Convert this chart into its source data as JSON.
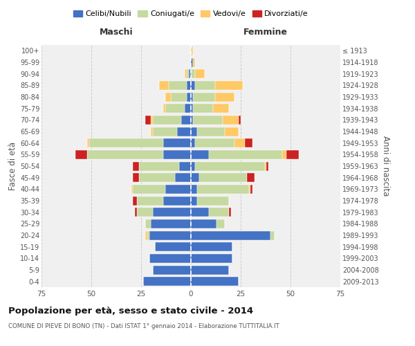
{
  "age_groups": [
    "0-4",
    "5-9",
    "10-14",
    "15-19",
    "20-24",
    "25-29",
    "30-34",
    "35-39",
    "40-44",
    "45-49",
    "50-54",
    "55-59",
    "60-64",
    "65-69",
    "70-74",
    "75-79",
    "80-84",
    "85-89",
    "90-94",
    "95-99",
    "100+"
  ],
  "birth_years": [
    "2009-2013",
    "2004-2008",
    "1999-2003",
    "1994-1998",
    "1989-1993",
    "1984-1988",
    "1979-1983",
    "1974-1978",
    "1969-1973",
    "1964-1968",
    "1959-1963",
    "1954-1958",
    "1949-1953",
    "1944-1948",
    "1939-1943",
    "1934-1938",
    "1929-1933",
    "1924-1928",
    "1919-1923",
    "1914-1918",
    "≤ 1913"
  ],
  "colors": {
    "celibe": "#4472c4",
    "coniugato": "#c5d9a0",
    "vedovo": "#ffc966",
    "divorziato": "#cc2222"
  },
  "maschi": {
    "celibe": [
      24,
      19,
      21,
      18,
      21,
      20,
      19,
      14,
      13,
      8,
      6,
      14,
      14,
      7,
      5,
      3,
      2,
      2,
      1,
      0,
      0
    ],
    "coniugato": [
      0,
      0,
      0,
      0,
      1,
      3,
      8,
      13,
      16,
      18,
      20,
      38,
      37,
      12,
      14,
      10,
      8,
      9,
      1,
      0,
      0
    ],
    "vedovo": [
      0,
      0,
      0,
      0,
      1,
      0,
      0,
      0,
      1,
      0,
      0,
      0,
      1,
      1,
      1,
      1,
      3,
      5,
      1,
      0,
      0
    ],
    "divorziato": [
      0,
      0,
      0,
      0,
      0,
      0,
      1,
      2,
      0,
      3,
      3,
      6,
      0,
      0,
      3,
      0,
      0,
      0,
      0,
      0,
      0
    ]
  },
  "femmine": {
    "nubile": [
      24,
      19,
      21,
      21,
      40,
      13,
      9,
      3,
      3,
      4,
      2,
      9,
      2,
      3,
      1,
      1,
      1,
      2,
      0,
      1,
      0
    ],
    "coniugata": [
      0,
      0,
      0,
      0,
      2,
      4,
      10,
      16,
      26,
      24,
      35,
      37,
      20,
      14,
      15,
      10,
      11,
      10,
      2,
      0,
      0
    ],
    "vedova": [
      0,
      0,
      0,
      0,
      0,
      0,
      0,
      0,
      1,
      0,
      1,
      2,
      5,
      7,
      8,
      8,
      10,
      14,
      5,
      1,
      1
    ],
    "divorziata": [
      0,
      0,
      0,
      0,
      0,
      0,
      1,
      0,
      1,
      4,
      1,
      6,
      4,
      0,
      1,
      0,
      0,
      0,
      0,
      0,
      0
    ]
  },
  "xlim": 75,
  "title": "Popolazione per età, sesso e stato civile - 2014",
  "subtitle": "COMUNE DI PIEVE DI BONO (TN) - Dati ISTAT 1° gennaio 2014 - Elaborazione TUTTITALIA.IT",
  "xlabel_left": "Maschi",
  "xlabel_right": "Femmine",
  "ylabel_left": "Fasce di età",
  "ylabel_right": "Anni di nascita",
  "legend_labels": [
    "Celibi/Nubili",
    "Coniugati/e",
    "Vedovi/e",
    "Divorziati/e"
  ],
  "bg_color": "#f0f0f0",
  "grid_color": "#cccccc"
}
